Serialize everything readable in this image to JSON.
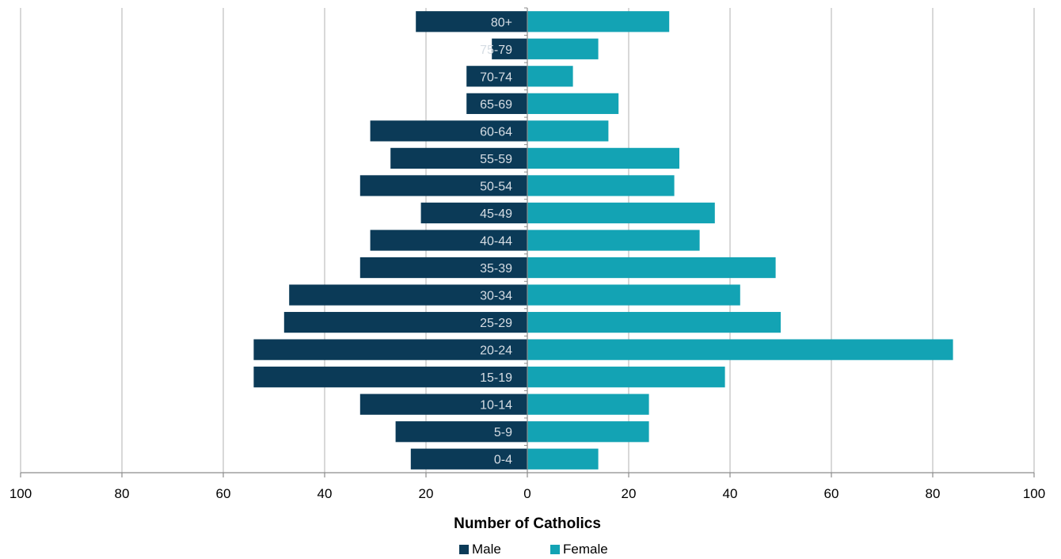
{
  "chart_data": {
    "type": "bar",
    "orientation": "horizontal",
    "layout": "population-pyramid",
    "categories": [
      "0-4",
      "5-9",
      "10-14",
      "15-19",
      "20-24",
      "25-29",
      "30-34",
      "35-39",
      "40-44",
      "45-49",
      "50-54",
      "55-59",
      "60-64",
      "65-69",
      "70-74",
      "75-79",
      "80+"
    ],
    "series": [
      {
        "name": "Male",
        "color": "#0b3a57",
        "side": "left",
        "values": [
          23,
          26,
          33,
          54,
          54,
          48,
          47,
          33,
          31,
          21,
          33,
          27,
          31,
          12,
          12,
          7,
          22
        ]
      },
      {
        "name": "Female",
        "color": "#13a3b4",
        "side": "right",
        "values": [
          14,
          24,
          24,
          39,
          84,
          50,
          42,
          49,
          34,
          37,
          29,
          30,
          16,
          18,
          9,
          14,
          28
        ]
      }
    ],
    "xlabel": "Number of Catholics",
    "xlim": [
      -100,
      100
    ],
    "xticks": [
      -100,
      -80,
      -60,
      -40,
      -20,
      0,
      20,
      40,
      60,
      80,
      100
    ],
    "xtick_labels": [
      "100",
      "80",
      "60",
      "40",
      "20",
      "0",
      "20",
      "40",
      "60",
      "80",
      "100"
    ],
    "grid": "vertical",
    "legend": "bottom-center"
  }
}
